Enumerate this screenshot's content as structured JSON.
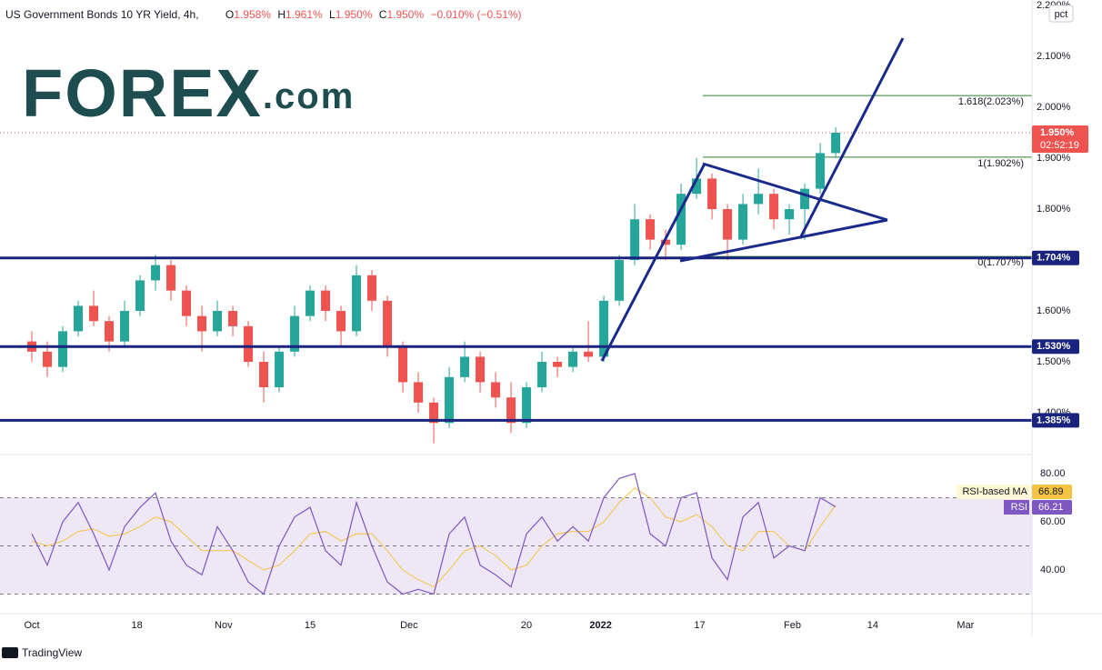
{
  "header": {
    "title": "US Government Bonds 10 YR Yield, 4h,",
    "ohlc": [
      {
        "label": "O",
        "value": "1.958%"
      },
      {
        "label": "H",
        "value": "1.961%"
      },
      {
        "label": "L",
        "value": "1.950%"
      },
      {
        "label": "C",
        "value": "1.950%"
      }
    ],
    "change": "−0.010% (−0.51%)"
  },
  "logo": "FOREX",
  "logo_suffix": ".com",
  "footer": "TradingView",
  "chart_data": [
    {
      "type": "candlestick",
      "unit": "pct",
      "up_color": "#26a69a",
      "down_color": "#ef5350",
      "x": [
        0,
        2.5,
        5,
        7.5,
        10,
        12.5,
        15,
        17.5,
        20,
        22.5,
        25,
        27.5,
        30,
        32.5,
        35,
        37.5,
        40,
        42.5,
        45,
        47.5,
        50,
        52.5,
        55,
        57.5,
        60,
        62.5,
        65,
        67.5,
        70,
        72.5,
        75,
        77.5,
        80,
        82.5,
        85,
        87.5,
        90,
        92.5,
        95,
        97.5,
        100,
        102.5,
        105,
        107.5,
        110,
        112.5,
        115,
        117.5,
        120,
        122.5,
        125,
        127.5,
        130
      ],
      "open": [
        1.54,
        1.52,
        1.49,
        1.56,
        1.61,
        1.58,
        1.54,
        1.6,
        1.66,
        1.69,
        1.64,
        1.59,
        1.56,
        1.6,
        1.57,
        1.5,
        1.45,
        1.52,
        1.59,
        1.64,
        1.6,
        1.56,
        1.67,
        1.62,
        1.53,
        1.46,
        1.42,
        1.38,
        1.47,
        1.51,
        1.46,
        1.43,
        1.38,
        1.45,
        1.5,
        1.49,
        1.52,
        1.51,
        1.62,
        1.7,
        1.78,
        1.74,
        1.73,
        1.83,
        1.86,
        1.8,
        1.74,
        1.81,
        1.83,
        1.78,
        1.8,
        1.84,
        1.91
      ],
      "high": [
        1.56,
        1.54,
        1.57,
        1.62,
        1.64,
        1.59,
        1.62,
        1.67,
        1.71,
        1.7,
        1.65,
        1.61,
        1.62,
        1.61,
        1.58,
        1.52,
        1.53,
        1.61,
        1.65,
        1.65,
        1.61,
        1.69,
        1.68,
        1.63,
        1.54,
        1.48,
        1.43,
        1.49,
        1.54,
        1.52,
        1.48,
        1.46,
        1.46,
        1.52,
        1.51,
        1.53,
        1.58,
        1.63,
        1.71,
        1.81,
        1.79,
        1.76,
        1.85,
        1.9,
        1.87,
        1.81,
        1.83,
        1.88,
        1.84,
        1.81,
        1.85,
        1.93,
        1.961
      ],
      "low": [
        1.5,
        1.47,
        1.48,
        1.55,
        1.57,
        1.52,
        1.53,
        1.59,
        1.64,
        1.62,
        1.57,
        1.52,
        1.55,
        1.55,
        1.49,
        1.42,
        1.44,
        1.51,
        1.58,
        1.58,
        1.53,
        1.55,
        1.6,
        1.51,
        1.44,
        1.4,
        1.34,
        1.37,
        1.46,
        1.44,
        1.41,
        1.36,
        1.37,
        1.44,
        1.47,
        1.48,
        1.5,
        1.5,
        1.61,
        1.69,
        1.72,
        1.7,
        1.72,
        1.82,
        1.78,
        1.7,
        1.73,
        1.79,
        1.76,
        1.75,
        1.74,
        1.83,
        1.9
      ],
      "close": [
        1.52,
        1.49,
        1.56,
        1.61,
        1.58,
        1.54,
        1.6,
        1.66,
        1.69,
        1.64,
        1.59,
        1.56,
        1.6,
        1.57,
        1.5,
        1.45,
        1.52,
        1.59,
        1.64,
        1.6,
        1.56,
        1.67,
        1.62,
        1.53,
        1.46,
        1.42,
        1.38,
        1.47,
        1.51,
        1.46,
        1.43,
        1.38,
        1.45,
        1.5,
        1.49,
        1.52,
        1.51,
        1.62,
        1.7,
        1.78,
        1.74,
        1.73,
        1.83,
        1.86,
        1.8,
        1.74,
        1.81,
        1.83,
        1.78,
        1.8,
        1.84,
        1.91,
        1.95
      ],
      "xlim": [
        -5.15,
        161.75
      ],
      "ylim": [
        1.3179,
        2.2107
      ],
      "xticks": [
        {
          "value": 0,
          "label": "Oct"
        },
        {
          "value": 17,
          "label": "18"
        },
        {
          "value": 31,
          "label": "Nov"
        },
        {
          "value": 45,
          "label": "15"
        },
        {
          "value": 61,
          "label": "Dec"
        },
        {
          "value": 80,
          "label": "20"
        },
        {
          "value": 92,
          "label": "2022"
        },
        {
          "value": 108,
          "label": "17"
        },
        {
          "value": 123,
          "label": "Feb"
        },
        {
          "value": 136,
          "label": "14"
        },
        {
          "value": 151,
          "label": "Mar"
        }
      ],
      "yticks": [
        {
          "value": 1.4,
          "label": "1.400%"
        },
        {
          "value": 1.5,
          "label": "1.500%"
        },
        {
          "value": 1.6,
          "label": "1.600%"
        },
        {
          "value": 1.7,
          "label": "1.700%"
        },
        {
          "value": 1.8,
          "label": "1.800%"
        },
        {
          "value": 1.9,
          "label": "1.900%"
        },
        {
          "value": 2.0,
          "label": "2.000%"
        },
        {
          "value": 2.1,
          "label": "2.100%"
        },
        {
          "value": 2.2,
          "label": "2.200%"
        }
      ],
      "levels": [
        {
          "value": 1.704,
          "label": "1.704%"
        },
        {
          "value": 1.53,
          "label": "1.530%"
        },
        {
          "value": 1.385,
          "label": "1.385%"
        }
      ],
      "level_color": "#1a237e",
      "fib": [
        {
          "value": 2.023,
          "label": "1.618(2.023%)"
        },
        {
          "value": 1.902,
          "label": "1(1.902%)"
        },
        {
          "value": 1.707,
          "label": "0(1.707%)"
        }
      ],
      "last": {
        "value": 1.95,
        "label": "1.950%",
        "countdown": "02:52:19",
        "color": "#ef5350"
      }
    },
    {
      "type": "line",
      "x": [
        0,
        2.5,
        5,
        7.5,
        10,
        12.5,
        15,
        17.5,
        20,
        22.5,
        25,
        27.5,
        30,
        32.5,
        35,
        37.5,
        40,
        42.5,
        45,
        47.5,
        50,
        52.5,
        55,
        57.5,
        60,
        62.5,
        65,
        67.5,
        70,
        72.5,
        75,
        77.5,
        80,
        82.5,
        85,
        87.5,
        90,
        92.5,
        95,
        97.5,
        100,
        102.5,
        105,
        107.5,
        110,
        112.5,
        115,
        117.5,
        120,
        122.5,
        125,
        127.5,
        130
      ],
      "series": [
        {
          "name": "RSI",
          "color": "#7e57c2",
          "values": [
            55,
            42,
            60,
            68,
            55,
            40,
            58,
            66,
            72,
            52,
            42,
            38,
            58,
            48,
            35,
            30,
            50,
            62,
            66,
            48,
            42,
            68,
            50,
            35,
            30,
            32,
            30,
            55,
            62,
            42,
            38,
            33,
            55,
            62,
            52,
            58,
            52,
            70,
            78,
            80,
            55,
            50,
            70,
            72,
            45,
            36,
            62,
            68,
            45,
            50,
            48,
            70,
            66.21
          ]
        },
        {
          "name": "RSI-based MA",
          "color": "#f5c342",
          "values": [
            52,
            50,
            52,
            56,
            57,
            54,
            55,
            58,
            62,
            60,
            54,
            48,
            48,
            48,
            44,
            40,
            42,
            48,
            55,
            56,
            52,
            55,
            55,
            48,
            40,
            36,
            33,
            40,
            48,
            50,
            46,
            40,
            42,
            50,
            55,
            56,
            56,
            60,
            68,
            74,
            70,
            62,
            60,
            63,
            58,
            50,
            48,
            56,
            56,
            50,
            48,
            58,
            66.89
          ]
        }
      ],
      "xlim": [
        -5.15,
        161.75
      ],
      "ylim": [
        21.9,
        87.9
      ],
      "yticks": [
        {
          "value": 40,
          "label": "40.00"
        },
        {
          "value": 60,
          "label": "60.00"
        },
        {
          "value": 80,
          "label": "80.00"
        }
      ],
      "levels": [
        70,
        50,
        30
      ],
      "band": [
        30,
        70
      ],
      "band_color": "#ede7f6"
    }
  ]
}
